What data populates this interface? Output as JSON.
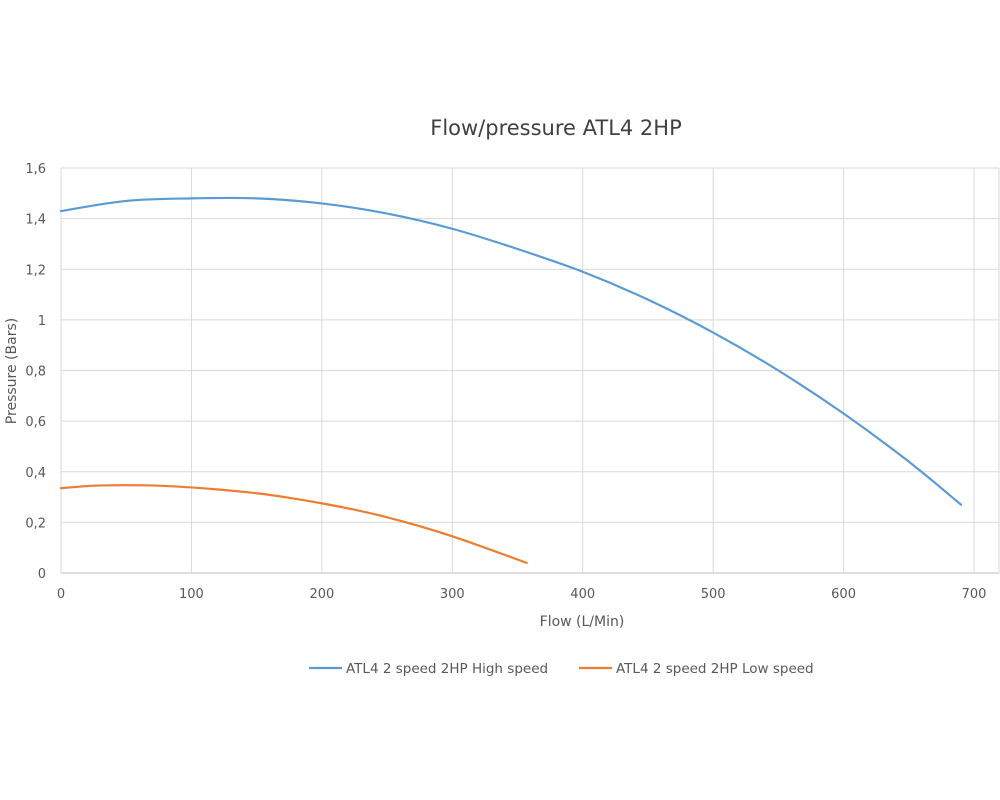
{
  "chart_data": {
    "type": "line",
    "title": "Flow/pressure ATL4 2HP",
    "xlabel": "Flow (L/Min)",
    "ylabel": "Pressure (Bars)",
    "xlim": [
      0,
      700
    ],
    "ylim": [
      0,
      1.6
    ],
    "xticks": [
      "0",
      "100",
      "200",
      "300",
      "400",
      "500",
      "600",
      "700"
    ],
    "yticks": [
      "0",
      "0,2",
      "0,4",
      "0,6",
      "0,8",
      "1",
      "1,2",
      "1,4",
      "1,6"
    ],
    "grid": true,
    "legend_position": "bottom",
    "series": [
      {
        "name": "ATL4 2 speed 2HP High speed",
        "color": "#5B9BD5",
        "x": [
          0,
          50,
          100,
          150,
          200,
          250,
          300,
          350,
          400,
          450,
          500,
          550,
          600,
          650,
          690
        ],
        "y": [
          1.43,
          1.47,
          1.48,
          1.48,
          1.46,
          1.42,
          1.36,
          1.28,
          1.19,
          1.08,
          0.95,
          0.8,
          0.63,
          0.44,
          0.27
        ]
      },
      {
        "name": "ATL4 2 speed 2HP Low speed",
        "color": "#ED7D31",
        "x": [
          0,
          25,
          50,
          75,
          100,
          125,
          150,
          175,
          200,
          225,
          250,
          275,
          300,
          325,
          357
        ],
        "y": [
          0.335,
          0.345,
          0.347,
          0.345,
          0.338,
          0.328,
          0.315,
          0.297,
          0.275,
          0.25,
          0.22,
          0.185,
          0.145,
          0.1,
          0.04
        ]
      }
    ]
  }
}
